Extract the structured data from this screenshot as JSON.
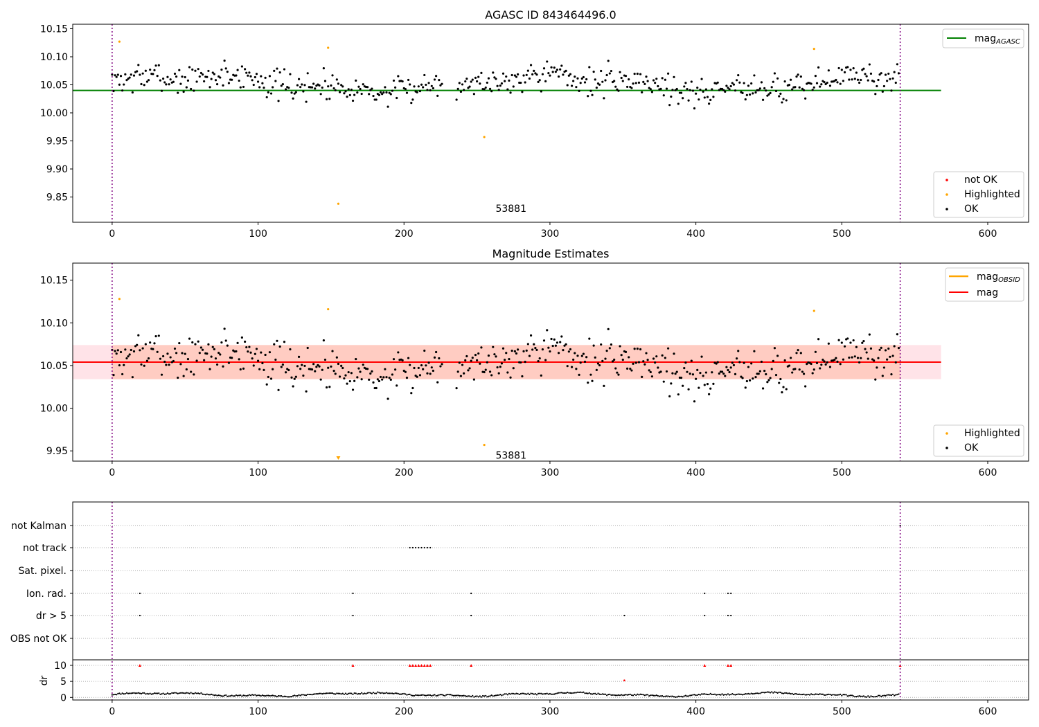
{
  "chart_data": [
    {
      "type": "scatter",
      "title": "AGASC ID 843464496.0",
      "xlim": [
        -27,
        628
      ],
      "ylim": [
        9.805,
        10.158
      ],
      "xticks": [
        0,
        100,
        200,
        300,
        400,
        500,
        600
      ],
      "yticks": [
        9.85,
        9.9,
        9.95,
        10.0,
        10.05,
        10.1,
        10.15
      ],
      "ytick_labels": [
        "9.85",
        "9.90",
        "9.95",
        "10.00",
        "10.05",
        "10.10",
        "10.15"
      ],
      "vlines": [
        0,
        540
      ],
      "hline": {
        "name": "mag_AGASC",
        "y": 10.04,
        "x": [
          -27,
          568
        ],
        "color": "#008000"
      },
      "annotation": {
        "text": "53881",
        "x": 258,
        "y": 9.82
      },
      "legend_lines": [
        {
          "label": "mag",
          "sub": "AGASC",
          "color": "#008000"
        }
      ],
      "legend_points": [
        {
          "label": "not OK",
          "color": "#ff0000"
        },
        {
          "label": "Highlighted",
          "color": "#ffa500"
        },
        {
          "label": "OK",
          "color": "#000000"
        }
      ],
      "highlighted_points": [
        [
          5,
          10.127
        ],
        [
          148,
          10.116
        ],
        [
          155,
          9.838
        ],
        [
          255,
          9.957
        ],
        [
          481,
          10.114
        ]
      ],
      "ok_series": {
        "n": 540,
        "x_range": [
          0,
          540
        ],
        "baseline": 10.053,
        "spread": 0.02,
        "seed": 7,
        "gap": [
          226,
          236
        ]
      }
    },
    {
      "type": "scatter",
      "title": "Magnitude Estimates",
      "xlim": [
        -27,
        628
      ],
      "ylim": [
        9.938,
        10.17
      ],
      "xticks": [
        0,
        100,
        200,
        300,
        400,
        500,
        600
      ],
      "yticks": [
        9.95,
        10.0,
        10.05,
        10.1,
        10.15
      ],
      "ytick_labels": [
        "9.95",
        "10.00",
        "10.05",
        "10.10",
        "10.15"
      ],
      "vlines": [
        0,
        540
      ],
      "mag_line": {
        "name": "mag",
        "y": 10.054,
        "x": [
          -27,
          568
        ],
        "color": "#ff0000"
      },
      "mag_obsid_line": {
        "name": "mag_OBSID",
        "color": "#ffa500"
      },
      "band_outer": {
        "y": [
          10.034,
          10.074
        ],
        "x": [
          -27,
          568
        ],
        "color": "#ffc0cb"
      },
      "band_inner": {
        "y": [
          10.034,
          10.074
        ],
        "x": [
          0,
          540
        ],
        "color": "#ffa07a"
      },
      "annotation": {
        "text": "53881",
        "x": 258,
        "y": 9.945
      },
      "legend_lines": [
        {
          "label": "mag",
          "sub": "OBSID",
          "color": "#ffa500"
        },
        {
          "label": "mag",
          "sub": "",
          "color": "#ff0000"
        }
      ],
      "legend_points": [
        {
          "label": "Highlighted",
          "color": "#ffa500"
        },
        {
          "label": "OK",
          "color": "#000000"
        }
      ],
      "highlighted_points": [
        [
          5,
          10.128
        ],
        [
          148,
          10.116
        ],
        [
          255,
          9.957
        ],
        [
          481,
          10.114
        ]
      ],
      "offscale_marker": {
        "x": 155,
        "y": 9.94,
        "color": "#ffa500"
      }
    },
    {
      "type": "scatter",
      "title": "",
      "xlim": [
        -27,
        628
      ],
      "xticks": [
        0,
        100,
        200,
        300,
        400,
        500,
        600
      ],
      "vlines": [
        0,
        540
      ],
      "flag_rows": [
        "not Kalman",
        "not track",
        "Sat. pixel.",
        "Ion. rad.",
        "dr > 5",
        "OBS not OK"
      ],
      "flag_points": {
        "not Kalman": [
          540
        ],
        "not track": [
          204,
          206,
          208,
          210,
          212,
          214,
          216,
          218
        ],
        "Sat. pixel.": [],
        "Ion. rad.": [
          19,
          165,
          246,
          406,
          422,
          424
        ],
        "dr > 5": [
          19,
          165,
          246,
          351,
          406,
          422,
          424
        ],
        "OBS not OK": []
      },
      "dr_ylabel": "dr",
      "dr_ylim": [
        -0.8,
        11.5
      ],
      "dr_yticks": [
        0,
        5,
        10
      ],
      "dr_ytick_labels": [
        "0",
        "5",
        "10"
      ],
      "dr_clipped_points": [
        19,
        165,
        204,
        206,
        208,
        210,
        212,
        214,
        216,
        218,
        246,
        406,
        422,
        424,
        540
      ],
      "dr_high_point": [
        351,
        5.3
      ],
      "dr_series": {
        "n": 540,
        "x_range": [
          0,
          540
        ],
        "mean": 0.9,
        "seed": 11
      }
    }
  ]
}
